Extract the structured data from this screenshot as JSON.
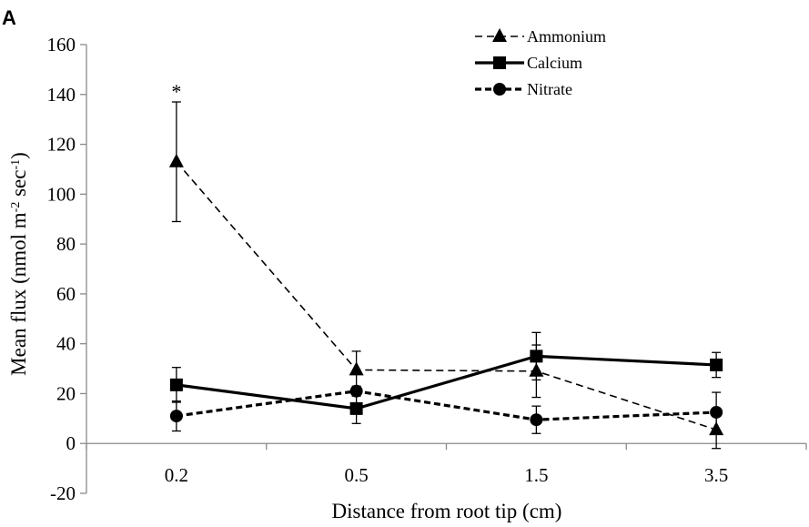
{
  "panel_label": "A",
  "chart_data": {
    "type": "line",
    "title": "",
    "xlabel": "Distance from root tip (cm)",
    "ylabel": "Mean flux (nmol m-2 sec-1)",
    "ylabel_parts": {
      "base": "Mean flux (nmol m",
      "sup1": "-2",
      "mid": " sec",
      "sup2": "-1",
      "end": ")"
    },
    "categories": [
      "0.2",
      "0.5",
      "1.5",
      "3.5"
    ],
    "ylim": [
      -20,
      160
    ],
    "yticks": [
      -20,
      0,
      20,
      40,
      60,
      80,
      100,
      120,
      140,
      160
    ],
    "grid": false,
    "legend_position": "top-right",
    "series": [
      {
        "name": "Ammonium",
        "marker": "triangle",
        "line_style": "dashed-thin",
        "values": [
          113,
          29.5,
          29,
          5.5
        ],
        "error": [
          24,
          7.5,
          10.5,
          7.5
        ]
      },
      {
        "name": "Calcium",
        "marker": "square",
        "line_style": "solid-thick",
        "values": [
          23.5,
          14,
          35,
          31.5
        ],
        "error": [
          7,
          6,
          9.5,
          5
        ]
      },
      {
        "name": "Nitrate",
        "marker": "circle",
        "line_style": "dashed-thick",
        "values": [
          11,
          21,
          9.5,
          12.5
        ],
        "error": [
          6,
          2,
          5.5,
          8
        ]
      }
    ],
    "annotations": [
      {
        "text": "*",
        "series": "Ammonium",
        "category": "0.2"
      }
    ]
  }
}
